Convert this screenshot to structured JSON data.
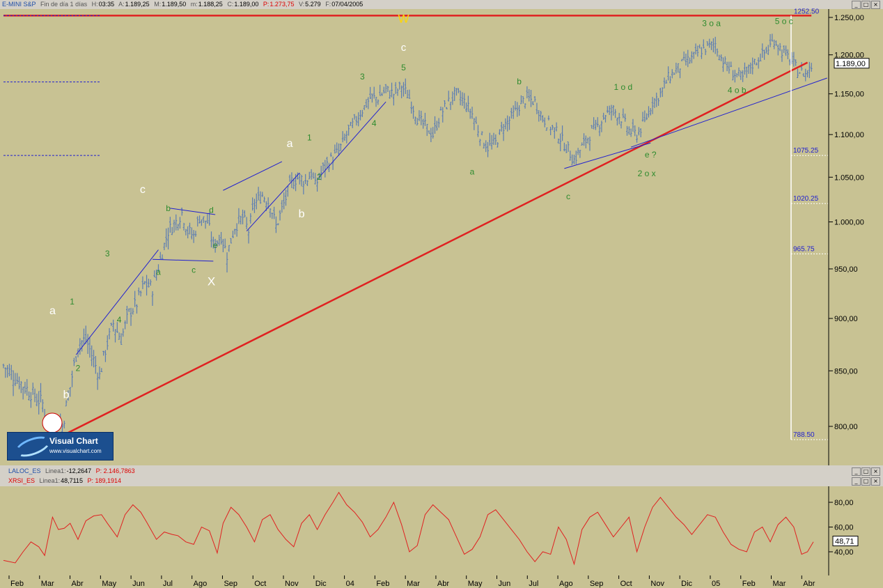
{
  "header": {
    "name": "E-MINI S&P",
    "subtitle": "Fin de día 1 días",
    "h_label": "H:",
    "h_value": "03:35",
    "a_label": "A:",
    "a_value": "1.189,25",
    "m_label": "M:",
    "m_value": "1.189,50",
    "min_label": "m:",
    "min_value": "1.188,25",
    "c_label": "C:",
    "c_value": "1.189,00",
    "p_label": "P:",
    "p_value": "1.273,75",
    "v_label": "V:",
    "v_value": "5.279",
    "f_label": "F:",
    "f_value": "07/04/2005"
  },
  "indicator1": {
    "name": "LALOC_ES",
    "series": "Linea1:",
    "value": "-12,2647",
    "p": "P: 2.146,7863"
  },
  "indicator2": {
    "name": "XRSI_ES",
    "series": "Linea1:",
    "value": "48,7115",
    "p": "P: 189,1914"
  },
  "window_buttons": [
    "_",
    "□",
    "×"
  ],
  "logo": {
    "title": "Visual Chart",
    "url": "www.visualchart.com"
  },
  "colors": {
    "pane_bg": "#c8c293",
    "price": "#5a7cb4",
    "trend": "#e02020",
    "channel": "#2020d0",
    "wave_green": "#2e8b2e",
    "wave_white": "#ffffff",
    "wave_yellow": "#ffd700",
    "rsi": "#e02020"
  },
  "chart_data": [
    {
      "type": "bar",
      "subtype": "ohlc_price",
      "y_ticks": [
        "1.250,00",
        "1.200,00",
        "1.150,00",
        "1.100,00",
        "1.050,00",
        "1.000,00",
        "950,00",
        "900,00",
        "850,00",
        "800,00"
      ],
      "ylim": [
        775,
        1265
      ],
      "x_ticks": [
        "Feb",
        "Mar",
        "Abr",
        "May",
        "Jun",
        "Jul",
        "Ago",
        "Sep",
        "Oct",
        "Nov",
        "Dic",
        "04",
        "Feb",
        "Mar",
        "Abr",
        "May",
        "Jun",
        "Jul",
        "Ago",
        "Sep",
        "Oct",
        "Nov",
        "Dic",
        "05",
        "Feb",
        "Mar",
        "Abr"
      ],
      "last_price_label": "1.189,00",
      "top_level_label": "1252.50",
      "fib_levels": [
        {
          "label": "1075.25",
          "value": 1075.25
        },
        {
          "label": "1020.25",
          "value": 1020.25
        },
        {
          "label": "965.75",
          "value": 965.75
        },
        {
          "label": "788.50",
          "value": 788.5
        }
      ],
      "close_path": [
        [
          0,
          855
        ],
        [
          8,
          840
        ],
        [
          14,
          830
        ],
        [
          20,
          820
        ],
        [
          22,
          805
        ],
        [
          25,
          795
        ],
        [
          30,
          800
        ],
        [
          34,
          835
        ],
        [
          38,
          875
        ],
        [
          42,
          880
        ],
        [
          46,
          860
        ],
        [
          49,
          845
        ],
        [
          52,
          870
        ],
        [
          56,
          895
        ],
        [
          60,
          880
        ],
        [
          64,
          905
        ],
        [
          68,
          915
        ],
        [
          72,
          935
        ],
        [
          76,
          930
        ],
        [
          80,
          960
        ],
        [
          84,
          990
        ],
        [
          88,
          1000
        ],
        [
          91,
          1010
        ],
        [
          94,
          990
        ],
        [
          97,
          985
        ],
        [
          100,
          1005
        ],
        [
          104,
          1000
        ],
        [
          107,
          975
        ],
        [
          111,
          985
        ],
        [
          114,
          965
        ],
        [
          118,
          995
        ],
        [
          122,
          1005
        ],
        [
          125,
          990
        ],
        [
          128,
          1020
        ],
        [
          132,
          1030
        ],
        [
          136,
          1020
        ],
        [
          139,
          995
        ],
        [
          143,
          1020
        ],
        [
          147,
          1045
        ],
        [
          151,
          1050
        ],
        [
          154,
          1045
        ],
        [
          157,
          1055
        ],
        [
          159,
          1040
        ],
        [
          163,
          1060
        ],
        [
          167,
          1070
        ],
        [
          171,
          1080
        ],
        [
          175,
          1100
        ],
        [
          179,
          1115
        ],
        [
          183,
          1130
        ],
        [
          187,
          1145
        ],
        [
          191,
          1145
        ],
        [
          195,
          1155
        ],
        [
          199,
          1150
        ],
        [
          203,
          1160
        ],
        [
          207,
          1145
        ],
        [
          211,
          1120
        ],
        [
          215,
          1110
        ],
        [
          219,
          1100
        ],
        [
          223,
          1125
        ],
        [
          227,
          1140
        ],
        [
          231,
          1150
        ],
        [
          235,
          1140
        ],
        [
          239,
          1125
        ],
        [
          243,
          1100
        ],
        [
          247,
          1085
        ],
        [
          251,
          1090
        ],
        [
          255,
          1110
        ],
        [
          259,
          1120
        ],
        [
          263,
          1135
        ],
        [
          267,
          1145
        ],
        [
          271,
          1140
        ],
        [
          275,
          1120
        ],
        [
          279,
          1110
        ],
        [
          283,
          1100
        ],
        [
          287,
          1085
        ],
        [
          291,
          1070
        ],
        [
          295,
          1085
        ],
        [
          299,
          1100
        ],
        [
          303,
          1110
        ],
        [
          307,
          1125
        ],
        [
          311,
          1130
        ],
        [
          315,
          1120
        ],
        [
          319,
          1105
        ],
        [
          323,
          1100
        ],
        [
          327,
          1115
        ],
        [
          331,
          1140
        ],
        [
          335,
          1150
        ],
        [
          339,
          1170
        ],
        [
          343,
          1180
        ],
        [
          347,
          1190
        ],
        [
          351,
          1195
        ],
        [
          355,
          1205
        ],
        [
          359,
          1210
        ],
        [
          363,
          1215
        ],
        [
          365,
          1200
        ],
        [
          369,
          1185
        ],
        [
          373,
          1175
        ],
        [
          377,
          1170
        ],
        [
          381,
          1185
        ],
        [
          385,
          1195
        ],
        [
          389,
          1205
        ],
        [
          393,
          1220
        ],
        [
          397,
          1205
        ],
        [
          401,
          1195
        ],
        [
          405,
          1180
        ],
        [
          409,
          1175
        ],
        [
          412,
          1185
        ]
      ],
      "trend_lines": [
        {
          "from": [
            30,
            792
          ],
          "to": [
            410,
            1190
          ],
          "color": "trend"
        },
        {
          "from": [
            0,
            1252.5
          ],
          "to": [
            412,
            1252.5
          ],
          "color": "trend"
        }
      ],
      "channel_lines": [
        {
          "from": [
            37,
            865
          ],
          "to": [
            79,
            970
          ]
        },
        {
          "from": [
            76,
            960
          ],
          "to": [
            107,
            958
          ]
        },
        {
          "from": [
            85,
            1015
          ],
          "to": [
            108,
            1008
          ]
        },
        {
          "from": [
            112,
            1035
          ],
          "to": [
            142,
            1068
          ]
        },
        {
          "from": [
            124,
            990
          ],
          "to": [
            151,
            1055
          ]
        },
        {
          "from": [
            161,
            1050
          ],
          "to": [
            195,
            1140
          ]
        },
        {
          "from": [
            286,
            1060
          ],
          "to": [
            330,
            1090
          ]
        },
        {
          "from": [
            320,
            1085
          ],
          "to": [
            420,
            1170
          ]
        }
      ],
      "wave_labels": [
        {
          "text": "W",
          "x": 204,
          "y": 1243,
          "c": "yellow",
          "s": 17
        },
        {
          "text": "c",
          "x": 204,
          "y": 1205,
          "c": "white",
          "s": 15
        },
        {
          "text": "5",
          "x": 204,
          "y": 1180,
          "c": "green",
          "s": 12
        },
        {
          "text": "3",
          "x": 183,
          "y": 1168,
          "c": "green",
          "s": 12
        },
        {
          "text": "4",
          "x": 189,
          "y": 1110,
          "c": "green",
          "s": 12
        },
        {
          "text": "1",
          "x": 156,
          "y": 1093,
          "c": "green",
          "s": 12
        },
        {
          "text": "a",
          "x": 146,
          "y": 1085,
          "c": "white",
          "s": 16
        },
        {
          "text": "2",
          "x": 161,
          "y": 1047,
          "c": "green",
          "s": 12
        },
        {
          "text": "b",
          "x": 152,
          "y": 1005,
          "c": "white",
          "s": 16
        },
        {
          "text": "c",
          "x": 71,
          "y": 1032,
          "c": "white",
          "s": 16
        },
        {
          "text": "b",
          "x": 84,
          "y": 1012,
          "c": "green",
          "s": 12
        },
        {
          "text": "d",
          "x": 106,
          "y": 1010,
          "c": "green",
          "s": 12
        },
        {
          "text": "e",
          "x": 108,
          "y": 972,
          "c": "green",
          "s": 12
        },
        {
          "text": "a",
          "x": 79,
          "y": 944,
          "c": "green",
          "s": 12
        },
        {
          "text": "c",
          "x": 97,
          "y": 946,
          "c": "green",
          "s": 12
        },
        {
          "text": "X",
          "x": 106,
          "y": 933,
          "c": "white",
          "s": 17
        },
        {
          "text": "3",
          "x": 53,
          "y": 963,
          "c": "green",
          "s": 12
        },
        {
          "text": "1",
          "x": 35,
          "y": 914,
          "c": "green",
          "s": 12
        },
        {
          "text": "a",
          "x": 25,
          "y": 904,
          "c": "white",
          "s": 16
        },
        {
          "text": "4",
          "x": 59,
          "y": 896,
          "c": "green",
          "s": 12
        },
        {
          "text": "2",
          "x": 38,
          "y": 850,
          "c": "green",
          "s": 12
        },
        {
          "text": "b",
          "x": 32,
          "y": 825,
          "c": "white",
          "s": 16
        },
        {
          "text": "a",
          "x": 239,
          "y": 1053,
          "c": "green",
          "s": 12
        },
        {
          "text": "b",
          "x": 263,
          "y": 1162,
          "c": "green",
          "s": 12
        },
        {
          "text": "c",
          "x": 288,
          "y": 1025,
          "c": "green",
          "s": 12
        },
        {
          "text": "1 o d",
          "x": 316,
          "y": 1155,
          "c": "green",
          "s": 12
        },
        {
          "text": "e ?",
          "x": 330,
          "y": 1073,
          "c": "green",
          "s": 12
        },
        {
          "text": "2 o x",
          "x": 328,
          "y": 1051,
          "c": "green",
          "s": 12
        },
        {
          "text": "3 o a",
          "x": 361,
          "y": 1238,
          "c": "green",
          "s": 12
        },
        {
          "text": "4 o b",
          "x": 374,
          "y": 1151,
          "c": "green",
          "s": 12
        },
        {
          "text": "5 o c",
          "x": 398,
          "y": 1241,
          "c": "green",
          "s": 12
        }
      ]
    },
    {
      "type": "line",
      "name": "XRSI_ES Linea1",
      "y_ticks": [
        "80,00",
        "60,00",
        "40,00"
      ],
      "ylim": [
        26,
        90
      ],
      "last_value_label": "48,71",
      "points": [
        [
          0,
          33
        ],
        [
          6,
          31
        ],
        [
          10,
          40
        ],
        [
          14,
          48
        ],
        [
          18,
          44
        ],
        [
          21,
          37
        ],
        [
          25,
          68
        ],
        [
          28,
          58
        ],
        [
          31,
          59
        ],
        [
          34,
          63
        ],
        [
          38,
          50
        ],
        [
          42,
          65
        ],
        [
          46,
          69
        ],
        [
          50,
          70
        ],
        [
          53,
          63
        ],
        [
          58,
          52
        ],
        [
          62,
          70
        ],
        [
          66,
          78
        ],
        [
          70,
          72
        ],
        [
          73,
          64
        ],
        [
          78,
          50
        ],
        [
          82,
          56
        ],
        [
          86,
          54
        ],
        [
          89,
          53
        ],
        [
          93,
          48
        ],
        [
          97,
          46
        ],
        [
          101,
          60
        ],
        [
          105,
          57
        ],
        [
          109,
          39
        ],
        [
          112,
          63
        ],
        [
          116,
          76
        ],
        [
          120,
          70
        ],
        [
          124,
          60
        ],
        [
          128,
          48
        ],
        [
          132,
          66
        ],
        [
          136,
          70
        ],
        [
          140,
          58
        ],
        [
          144,
          50
        ],
        [
          148,
          44
        ],
        [
          152,
          63
        ],
        [
          156,
          70
        ],
        [
          160,
          58
        ],
        [
          164,
          70
        ],
        [
          168,
          80
        ],
        [
          171,
          88
        ],
        [
          175,
          78
        ],
        [
          179,
          72
        ],
        [
          183,
          64
        ],
        [
          187,
          52
        ],
        [
          191,
          58
        ],
        [
          195,
          68
        ],
        [
          199,
          80
        ],
        [
          203,
          62
        ],
        [
          207,
          40
        ],
        [
          211,
          45
        ],
        [
          215,
          70
        ],
        [
          219,
          78
        ],
        [
          223,
          72
        ],
        [
          227,
          66
        ],
        [
          231,
          52
        ],
        [
          235,
          38
        ],
        [
          239,
          42
        ],
        [
          243,
          52
        ],
        [
          247,
          70
        ],
        [
          251,
          74
        ],
        [
          255,
          66
        ],
        [
          259,
          58
        ],
        [
          263,
          50
        ],
        [
          267,
          40
        ],
        [
          271,
          32
        ],
        [
          275,
          40
        ],
        [
          279,
          38
        ],
        [
          283,
          60
        ],
        [
          287,
          50
        ],
        [
          291,
          30
        ],
        [
          295,
          58
        ],
        [
          299,
          68
        ],
        [
          303,
          72
        ],
        [
          307,
          62
        ],
        [
          311,
          52
        ],
        [
          315,
          60
        ],
        [
          319,
          68
        ],
        [
          323,
          40
        ],
        [
          327,
          60
        ],
        [
          331,
          76
        ],
        [
          335,
          84
        ],
        [
          339,
          76
        ],
        [
          343,
          68
        ],
        [
          347,
          62
        ],
        [
          351,
          54
        ],
        [
          355,
          62
        ],
        [
          359,
          70
        ],
        [
          363,
          68
        ],
        [
          367,
          56
        ],
        [
          371,
          46
        ],
        [
          375,
          42
        ],
        [
          379,
          40
        ],
        [
          383,
          56
        ],
        [
          387,
          60
        ],
        [
          391,
          48
        ],
        [
          395,
          62
        ],
        [
          399,
          68
        ],
        [
          403,
          60
        ],
        [
          407,
          38
        ],
        [
          410,
          40
        ],
        [
          413,
          48
        ]
      ]
    }
  ]
}
